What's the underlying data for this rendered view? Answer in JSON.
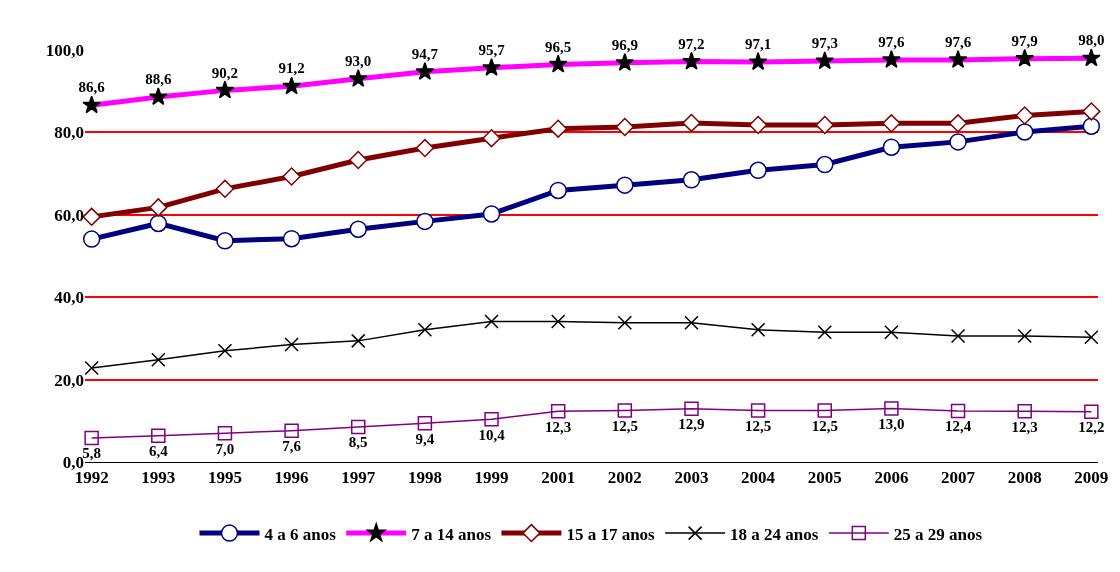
{
  "chart_data": {
    "type": "line",
    "categories": [
      "1992",
      "1993",
      "1995",
      "1996",
      "1997",
      "1998",
      "1999",
      "2001",
      "2002",
      "2003",
      "2004",
      "2005",
      "2006",
      "2007",
      "2008",
      "2009"
    ],
    "ylim": [
      0,
      100
    ],
    "yticks": [
      {
        "value": 0,
        "label": "0,0"
      },
      {
        "value": 20,
        "label": "20,0"
      },
      {
        "value": 40,
        "label": "40,0"
      },
      {
        "value": 60,
        "label": "60,0"
      },
      {
        "value": 80,
        "label": "80,0"
      },
      {
        "value": 100,
        "label": "100,0"
      }
    ],
    "grid": "y",
    "legend": "bottom",
    "line_style": "solid",
    "series": [
      {
        "name": "4 a 6 anos",
        "color": "#000080",
        "marker": "circle",
        "values": [
          54.1,
          57.9,
          53.7,
          54.2,
          56.5,
          58.4,
          60.2,
          65.9,
          67.2,
          68.5,
          70.8,
          72.2,
          76.4,
          77.7,
          80.1,
          81.5
        ]
      },
      {
        "name": "7 a 14 anos",
        "color": "#ff00ff",
        "marker": "star",
        "values": [
          86.6,
          88.6,
          90.2,
          91.2,
          93.0,
          94.7,
          95.7,
          96.5,
          96.9,
          97.2,
          97.1,
          97.3,
          97.6,
          97.6,
          97.9,
          98.0
        ],
        "value_labels": [
          "86,6",
          "88,6",
          "90,2",
          "91,2",
          "93,0",
          "94,7",
          "95,7",
          "96,5",
          "96,9",
          "97,2",
          "97,1",
          "97,3",
          "97,6",
          "97,6",
          "97,9",
          "98,0"
        ]
      },
      {
        "name": "15 a 17 anos",
        "color": "#800000",
        "marker": "diamond",
        "values": [
          59.5,
          61.8,
          66.3,
          69.3,
          73.3,
          76.2,
          78.6,
          80.9,
          81.3,
          82.3,
          81.8,
          81.8,
          82.2,
          82.2,
          84.1,
          85.1
        ]
      },
      {
        "name": "18 a 24 anos",
        "color": "#000000",
        "marker": "cross",
        "values": [
          22.8,
          24.8,
          27.0,
          28.5,
          29.4,
          32.1,
          34.1,
          34.1,
          33.8,
          33.8,
          32.1,
          31.5,
          31.5,
          30.6,
          30.6,
          30.3
        ]
      },
      {
        "name": "25 a 29 anos",
        "color": "#800080",
        "marker": "square",
        "values": [
          5.8,
          6.4,
          7.0,
          7.6,
          8.5,
          9.4,
          10.4,
          12.3,
          12.5,
          12.9,
          12.5,
          12.5,
          13.0,
          12.4,
          12.3,
          12.2
        ],
        "value_labels": [
          "5,8",
          "6,4",
          "7,0",
          "7,6",
          "8,5",
          "9,4",
          "10,4",
          "12,3",
          "12,5",
          "12,9",
          "12,5",
          "12,5",
          "13,0",
          "12,4",
          "12,3",
          "12,2"
        ]
      }
    ]
  }
}
